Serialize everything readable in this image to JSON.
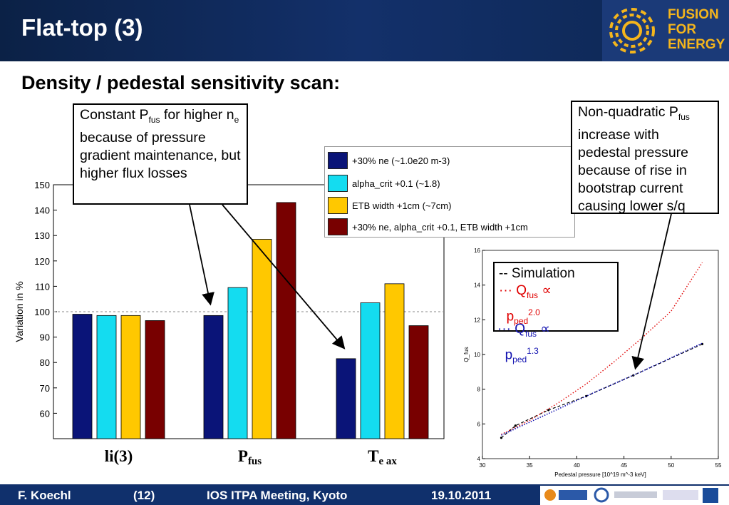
{
  "header": {
    "title": "Flat-top (3)",
    "logo_text": [
      "FUSION",
      "FOR",
      "ENERGY"
    ]
  },
  "subtitle": "Density / pedestal sensitivity scan:",
  "annotations": {
    "left_box": {
      "pre": "Constant P",
      "sub1": "fus",
      "mid": " for higher n",
      "sub2": "e",
      "post": " because of pressure gradient maintenance, but higher flux losses"
    },
    "right_box": {
      "pre": "Non-quadratic P",
      "sub1": "fus",
      "post": " increase with pedestal pressure because of rise in bootstrap current causing lower s/q"
    }
  },
  "legend": [
    {
      "label": "+30% ne (~1.0e20 m-3)",
      "color": "#0a1478"
    },
    {
      "label": "alpha_crit +0.1 (~1.8)",
      "color": "#14dcf0"
    },
    {
      "label": "ETB width +1cm (~7cm)",
      "color": "#ffc800"
    },
    {
      "label": "+30% ne, alpha_crit +0.1, ETB width +1cm",
      "color": "#780000"
    }
  ],
  "chart_data": [
    {
      "type": "bar",
      "ylabel": "Variation in %",
      "ylim": [
        50,
        150
      ],
      "yticks": [
        60,
        70,
        80,
        90,
        100,
        110,
        120,
        130,
        140,
        150
      ],
      "reference_line": 100,
      "categories": [
        "li(3)",
        "P",
        "T"
      ],
      "category_subscripts": [
        "",
        "fus",
        "e ax"
      ],
      "series": [
        {
          "name": "+30% ne (~1.0e20 m-3)",
          "values": [
            99,
            98.5,
            81.5
          ]
        },
        {
          "name": "alpha_crit +0.1 (~1.8)",
          "values": [
            98.5,
            109.5,
            103.5
          ]
        },
        {
          "name": "ETB width +1cm (~7cm)",
          "values": [
            98.5,
            128.5,
            111
          ]
        },
        {
          "name": "+30% ne, alpha_crit +0.1, ETB width +1cm",
          "values": [
            96.5,
            143,
            94.5
          ]
        }
      ]
    },
    {
      "type": "line",
      "xlabel": "Pedestal pressure [10^19 m^-3 keV]",
      "ylabel": "Q_fus",
      "xlim": [
        30,
        55
      ],
      "ylim": [
        4,
        16
      ],
      "xticks": [
        30,
        35,
        40,
        45,
        50,
        55
      ],
      "yticks": [
        4,
        6,
        8,
        10,
        12,
        14,
        16
      ],
      "series": [
        {
          "name": "Simulation",
          "x": [
            32,
            33.5,
            37,
            41,
            46,
            53.3
          ],
          "y": [
            5.2,
            5.9,
            6.8,
            7.6,
            8.8,
            10.6
          ]
        },
        {
          "name": "Q_fus ∝ p_ped^2.0",
          "x": [
            32,
            35,
            38,
            41,
            44,
            47,
            50,
            53.3
          ],
          "y": [
            5.4,
            6.2,
            7.2,
            8.3,
            9.6,
            11.0,
            12.5,
            15.3
          ]
        },
        {
          "name": "Q_fus ∝ p_ped^1.3",
          "x": [
            32,
            37,
            42,
            47,
            53.3
          ],
          "y": [
            5.35,
            6.6,
            7.85,
            9.05,
            10.65
          ]
        }
      ]
    }
  ],
  "sim_legend": {
    "line1": "-- Simulation",
    "line2_pre": "··· Q",
    "line2_sub": "fus",
    "line2_post": " ∝",
    "line2_p": "p",
    "line2_psub": "ped",
    "line2_exp": "2.0",
    "line3_pre": "··· Q",
    "line3_sub": "fus",
    "line3_post": " ∝",
    "line3_p": "p",
    "line3_psub": "ped",
    "line3_exp": "1.3"
  },
  "footer": {
    "author": "F. Koechl",
    "page": "(12)",
    "meeting": "IOS ITPA Meeting, Kyoto",
    "date": "19.10.2011"
  },
  "colors": {
    "header_bg": "#10306c",
    "accent": "#f4b51c"
  }
}
